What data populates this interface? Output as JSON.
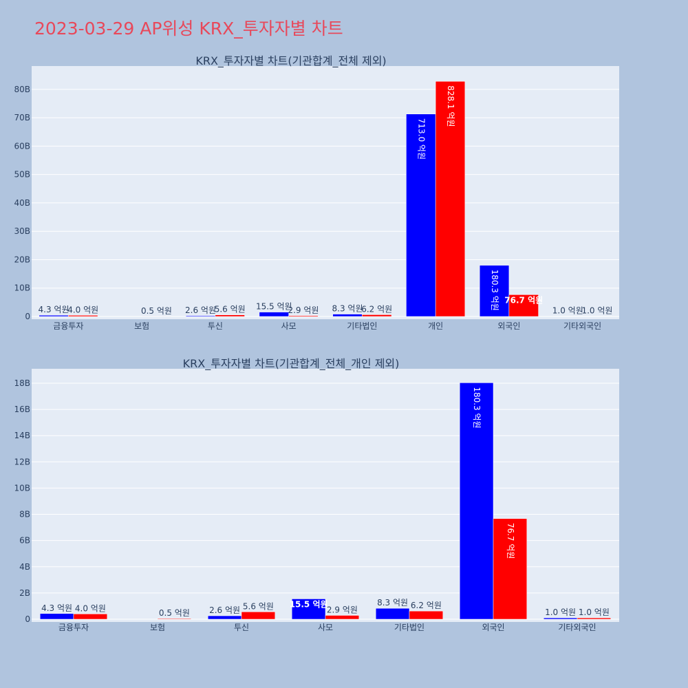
{
  "title": "2023-03-29 AP위성 KRX_투자자별 차트",
  "colors": {
    "buy": "#0000ff",
    "sell": "#ff0000",
    "plot_bg": "#e5ecf6",
    "page_bg": "#b0c4de",
    "title": "#e8485a"
  },
  "chart_data": [
    {
      "type": "bar",
      "title": "KRX_투자자별 차트(기관합계_전체 제외)",
      "categories": [
        "금융투자",
        "보험",
        "투신",
        "사모",
        "기타법인",
        "개인",
        "외국인",
        "기타외국인"
      ],
      "series": [
        {
          "values": [
            0.43,
            0.0,
            0.26,
            1.55,
            0.83,
            71.3,
            18.03,
            0.1
          ],
          "labels": [
            "4.3 억원",
            "",
            "2.6 억원",
            "15.5 억원",
            "8.3 억원",
            "713.0 억원",
            "180.3 억원",
            "1.0 억원"
          ]
        },
        {
          "values": [
            0.4,
            0.05,
            0.56,
            0.29,
            0.62,
            82.81,
            7.67,
            0.1
          ],
          "labels": [
            "4.0 억원",
            "0.5 억원",
            "5.6 억원",
            "2.9 억원",
            "6.2 억원",
            "828.1 억원",
            "76.7 억원",
            "1.0 억원"
          ]
        }
      ],
      "yticks": [
        "0",
        "10B",
        "20B",
        "30B",
        "40B",
        "50B",
        "60B",
        "70B",
        "80B"
      ],
      "ytick_values": [
        0,
        10,
        20,
        30,
        40,
        50,
        60,
        70,
        80
      ],
      "ylim": [
        0,
        88.2
      ],
      "grid": true
    },
    {
      "type": "bar",
      "title": "KRX_투자자별 차트(기관합계_전체_개인 제외)",
      "categories": [
        "금융투자",
        "보험",
        "투신",
        "사모",
        "기타법인",
        "외국인",
        "기타외국인"
      ],
      "series": [
        {
          "values": [
            0.43,
            0.0,
            0.26,
            1.55,
            0.83,
            18.03,
            0.1
          ],
          "labels": [
            "4.3 억원",
            "",
            "2.6 억원",
            "15.5 억원",
            "8.3 억원",
            "180.3 억원",
            "1.0 억원"
          ]
        },
        {
          "values": [
            0.4,
            0.05,
            0.56,
            0.29,
            0.62,
            7.67,
            0.1
          ],
          "labels": [
            "4.0 억원",
            "0.5 억원",
            "5.6 억원",
            "2.9 억원",
            "6.2 억원",
            "76.7 억원",
            "1.0 억원"
          ]
        }
      ],
      "yticks": [
        "0",
        "2B",
        "4B",
        "6B",
        "8B",
        "10B",
        "12B",
        "14B",
        "16B",
        "18B"
      ],
      "ytick_values": [
        0,
        2,
        4,
        6,
        8,
        10,
        12,
        14,
        16,
        18
      ],
      "ylim": [
        0,
        19.1
      ],
      "grid": true
    }
  ]
}
